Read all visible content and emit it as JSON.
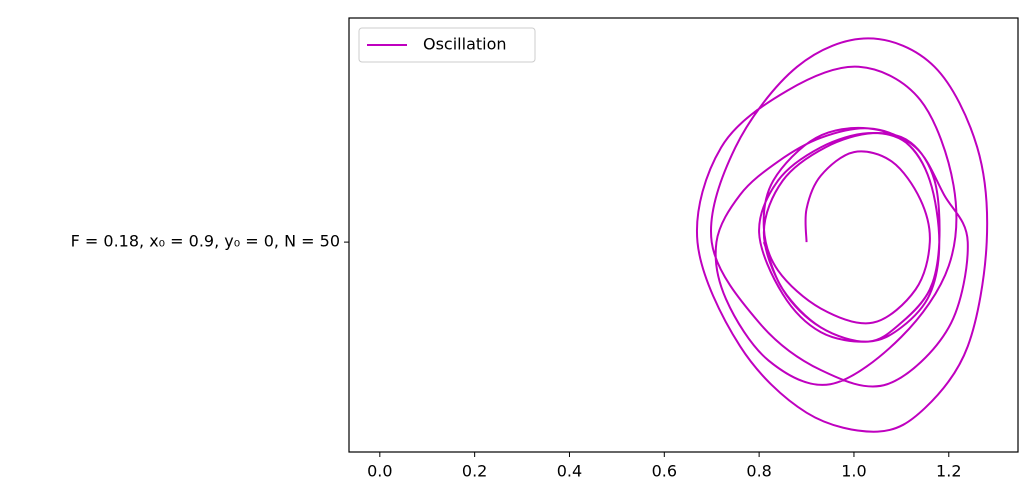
{
  "chart_data": {
    "type": "line",
    "x": [],
    "series": [
      {
        "name": "Oscillation",
        "color": "#bf00bf",
        "x": [
          0.9,
          0.9,
          0.93,
          1.0,
          1.08,
          1.14,
          1.16,
          1.13,
          1.04,
          0.93,
          0.84,
          0.81,
          0.83,
          0.92,
          1.03,
          1.13,
          1.19,
          1.24,
          1.2,
          1.07,
          0.93,
          0.8,
          0.7,
          0.75,
          0.88,
          1.03,
          1.17,
          1.26,
          1.28,
          1.24,
          1.15,
          1.05,
          0.9,
          0.76,
          0.67,
          0.72,
          0.86,
          1.01,
          1.14,
          1.21,
          1.2,
          1.1,
          0.95,
          0.82,
          0.73,
          0.71,
          0.76,
          0.84,
          0.93,
          1.03,
          1.11,
          1.16,
          1.18,
          1.16,
          1.1,
          1.03,
          0.93,
          0.85,
          0.8,
          0.84,
          0.93,
          1.03,
          1.11,
          1.16,
          1.18,
          1.16,
          1.1,
          1.03,
          0.93,
          0.85,
          0.81,
          0.85,
          0.94,
          1.04,
          1.12,
          1.17,
          1.18,
          1.16,
          1.1,
          1.03,
          0.93,
          0.85,
          0.81
        ],
        "values": [
          0.0,
          0.07,
          0.14,
          0.19,
          0.17,
          0.09,
          0.0,
          -0.1,
          -0.17,
          -0.14,
          -0.06,
          0.03,
          0.13,
          0.22,
          0.24,
          0.2,
          0.1,
          0.0,
          -0.18,
          -0.3,
          -0.27,
          -0.17,
          0.0,
          0.2,
          0.37,
          0.43,
          0.37,
          0.2,
          0.0,
          -0.22,
          -0.35,
          -0.4,
          -0.36,
          -0.22,
          0.0,
          0.2,
          0.32,
          0.37,
          0.3,
          0.12,
          -0.05,
          -0.2,
          -0.3,
          -0.25,
          -0.12,
          0.0,
          0.1,
          0.17,
          0.22,
          0.24,
          0.21,
          0.13,
          0.0,
          -0.11,
          -0.18,
          -0.21,
          -0.19,
          -0.11,
          0.02,
          0.13,
          0.2,
          0.23,
          0.21,
          0.13,
          0.0,
          -0.1,
          -0.17,
          -0.21,
          -0.18,
          -0.1,
          0.02,
          0.13,
          0.2,
          0.23,
          0.21,
          0.13,
          0.0,
          -0.1,
          -0.17,
          -0.21,
          -0.18,
          -0.1,
          0.0
        ]
      }
    ],
    "xlim": [
      -0.065,
      1.346
    ],
    "ylim": [
      -0.443,
      0.473
    ],
    "xticks": [
      {
        "value": 0,
        "label": "0.0"
      },
      0.2,
      0.4,
      0.6,
      0.8,
      {
        "value": 1,
        "label": "1.0"
      },
      1.2
    ],
    "yticks": [
      {
        "value": 0,
        "label": "F = 0.18, x₀ = 0.9, y₀ = 0, N = 50"
      }
    ],
    "legend": "upper left"
  }
}
